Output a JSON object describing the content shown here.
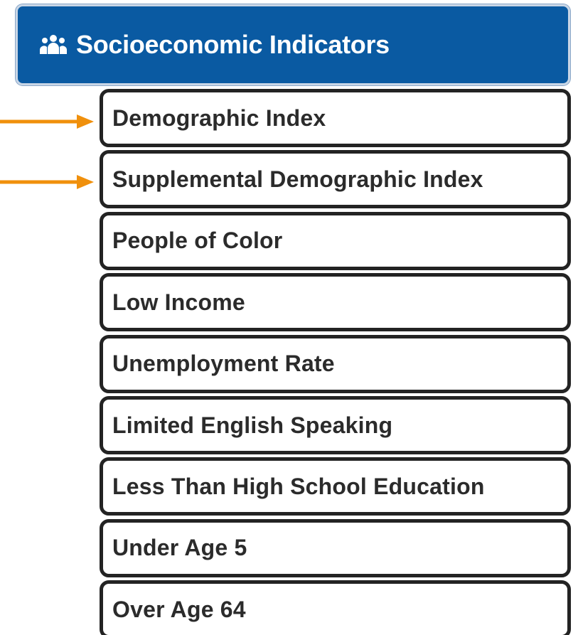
{
  "header": {
    "title": "Socioeconomic Indicators"
  },
  "items": [
    "Demographic Index",
    "Supplemental Demographic Index",
    "People of Color",
    "Low Income",
    "Unemployment Rate",
    "Limited English Speaking",
    "Less Than High School Education",
    "Under Age 5",
    "Over Age 64"
  ]
}
